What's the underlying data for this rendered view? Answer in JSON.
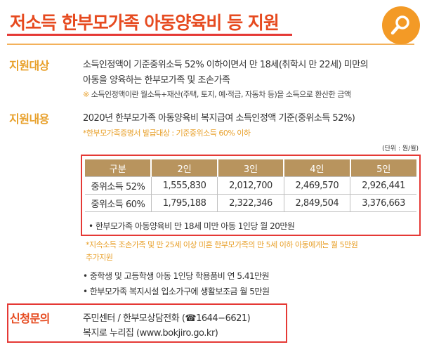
{
  "header": {
    "title": "저소득 한부모가족 아동양육비 등 지원",
    "search_icon": "search-icon"
  },
  "eligibility": {
    "label": "지원대상",
    "line1": "소득인정액이 기준중위소득 52% 이하이면서 만 18세(취학시 만 22세) 미만의",
    "line2": "아동을 양육하는 한부모가족 및 조손가족",
    "note_mark": "※",
    "note": "소득인정액이란 월소득+재산(주택, 토지, 예·적금, 자동차 등)을 소득으로 환산한 금액"
  },
  "support": {
    "label": "지원내용",
    "line1": "2020년 한부모가족 아동양육비 복지급여 소득인정액 기준(중위소득 52%)",
    "subnote": "*한부모가족증명서 발급대상 : 기준중위소득 60% 이하",
    "unit": "(단위 : 원/월)"
  },
  "table": {
    "headers": [
      "구분",
      "2인",
      "3인",
      "4인",
      "5인"
    ],
    "rows": [
      [
        "중위소득 52%",
        "1,555,830",
        "2,012,700",
        "2,469,570",
        "2,926,441"
      ],
      [
        "중위소득 60%",
        "1,795,188",
        "2,322,346",
        "2,849,504",
        "3,376,663"
      ]
    ],
    "note": "• 한부모가족 아동양육비 만 18세 미만 아동 1인당 월 20만원"
  },
  "extra": {
    "orange_line1": "*지속소득 조손가족 및 만 25세 이상 미혼 한부모가족의 만 5세 이하 아동에게는 월 5만원",
    "orange_line2": "추가지원",
    "bullet1": "• 중학생 및 고등학생 아동 1인당 학용품비 연 5.41만원",
    "bullet2": "• 한부모가족 복지시설 입소가구에 생활보조금 월 5만원"
  },
  "contact": {
    "label": "신청문의",
    "line1": "주민센터 / 한부모상담전화 (☎1644−6621)",
    "line2": "복지로 누리집 (www.bokjiro.go.kr)"
  },
  "colors": {
    "title": "#e64a1f",
    "accent": "#f39a26",
    "label": "#e8a02a",
    "table_header": "#b8945e",
    "highlight_box": "#e53935"
  }
}
